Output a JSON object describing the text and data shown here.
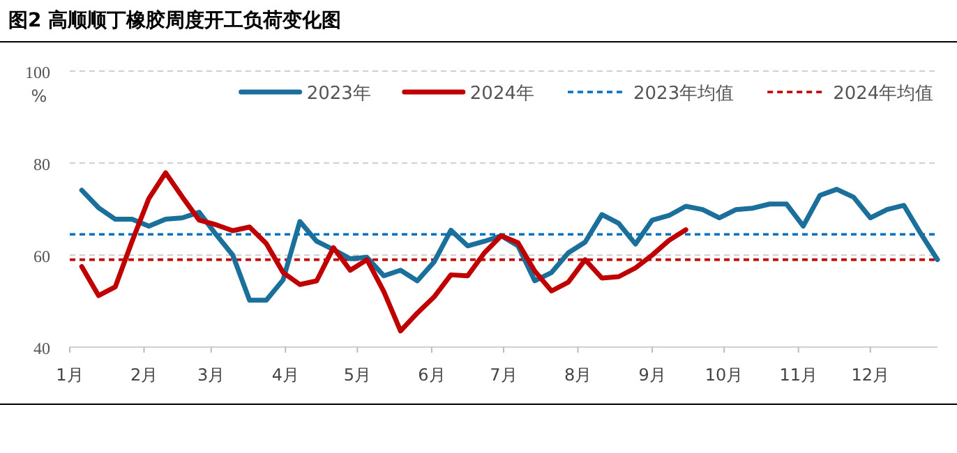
{
  "chart_data": {
    "type": "line",
    "title": "图2 高顺顺丁橡胶周度开工负荷变化图",
    "ylabel": "%",
    "x": [
      "--01-06",
      "--01-13",
      "--01-20",
      "--01-27",
      "--02-03",
      "--02-10",
      "--02-17",
      "--02-24",
      "--03-03",
      "--03-10",
      "--03-17",
      "--03-24",
      "--03-31",
      "--04-07",
      "--04-14",
      "--04-21",
      "--04-28",
      "--05-05",
      "--05-12",
      "--05-19",
      "--05-26",
      "--06-02",
      "--06-09",
      "--06-16",
      "--06-23",
      "--06-30",
      "--07-07",
      "--07-14",
      "--07-21",
      "--07-28",
      "--08-04",
      "--08-11",
      "--08-18",
      "--08-25",
      "--09-01",
      "--09-08",
      "--09-15",
      "--09-22",
      "--09-29",
      "--10-06",
      "--10-13",
      "--10-20",
      "--10-27",
      "--11-03",
      "--11-10",
      "--11-17",
      "--11-24",
      "--12-01",
      "--12-08",
      "--12-15",
      "--12-22",
      "--12-29"
    ],
    "xlim": [
      "--01-01",
      "--12-29"
    ],
    "xticks": [
      {
        "value": "--01-01",
        "label": "1月"
      },
      {
        "value": "--02-01",
        "label": "2月"
      },
      {
        "value": "--03-01",
        "label": "3月"
      },
      {
        "value": "--04-01",
        "label": "4月"
      },
      {
        "value": "--05-01",
        "label": "5月"
      },
      {
        "value": "--06-01",
        "label": "6月"
      },
      {
        "value": "--07-01",
        "label": "7月"
      },
      {
        "value": "--08-01",
        "label": "8月"
      },
      {
        "value": "--09-01",
        "label": "9月"
      },
      {
        "value": "--10-01",
        "label": "10月"
      },
      {
        "value": "--11-01",
        "label": "11月"
      },
      {
        "value": "--12-01",
        "label": "12月"
      }
    ],
    "ylim": [
      40,
      100
    ],
    "yticks": [
      40,
      60,
      80,
      100
    ],
    "grid": "y",
    "legend": "top",
    "line_style": "solid",
    "marker": "none",
    "series": [
      {
        "name": "2023年",
        "color": "#1b6f9b",
        "values": [
          74.1,
          70.3,
          67.8,
          67.8,
          66.3,
          67.8,
          68.1,
          69.3,
          64.5,
          60,
          50.2,
          50.2,
          54.6,
          67.3,
          63,
          61.2,
          59.2,
          59.5,
          55.5,
          56.7,
          54.4,
          58.5,
          65.4,
          62,
          63,
          64.2,
          62,
          54.4,
          56.2,
          60.5,
          62.8,
          68.8,
          66.9,
          62.4,
          67.6,
          68.6,
          70.6,
          69.9,
          68.1,
          69.9,
          70.2,
          71.1,
          71.1,
          66.3,
          73,
          74.3,
          72.6,
          68.1,
          69.9,
          70.8,
          64.7,
          59
        ]
      },
      {
        "name": "2024年",
        "color": "#c00000",
        "x": [
          "--01-06",
          "--01-13",
          "--01-20",
          "--01-27",
          "--02-03",
          "--02-10",
          "--02-17",
          "--02-24",
          "--03-03",
          "--03-10",
          "--03-17",
          "--03-24",
          "--03-31",
          "--04-07",
          "--04-14",
          "--04-21",
          "--04-28",
          "--05-05",
          "--05-12",
          "--05-19",
          "--05-26",
          "--06-02",
          "--06-09",
          "--06-16",
          "--06-23",
          "--06-30",
          "--07-07",
          "--07-14",
          "--07-21",
          "--07-28",
          "--08-04",
          "--08-11",
          "--08-18",
          "--08-25",
          "--09-01",
          "--09-08",
          "--09-15"
        ],
        "values": [
          57.5,
          51.2,
          53.1,
          63,
          72.3,
          77.9,
          72.6,
          67.6,
          66.6,
          65.3,
          66.1,
          62.5,
          56.2,
          53.6,
          54.4,
          61.6,
          56.7,
          59,
          52.1,
          43.5,
          47.4,
          50.9,
          55.7,
          55.5,
          60.5,
          64.2,
          62.7,
          56.5,
          52.2,
          54.1,
          59,
          55,
          55.3,
          57.2,
          60,
          63.2,
          65.5
        ]
      }
    ],
    "ref_lines": [
      {
        "axis": "y",
        "value": 64.5,
        "label": "2023年均值",
        "color": "#0070c0",
        "line_style": "dashed"
      },
      {
        "axis": "y",
        "value": 59,
        "label": "2024年均值",
        "color": "#c00000",
        "line_style": "dashed"
      }
    ]
  }
}
